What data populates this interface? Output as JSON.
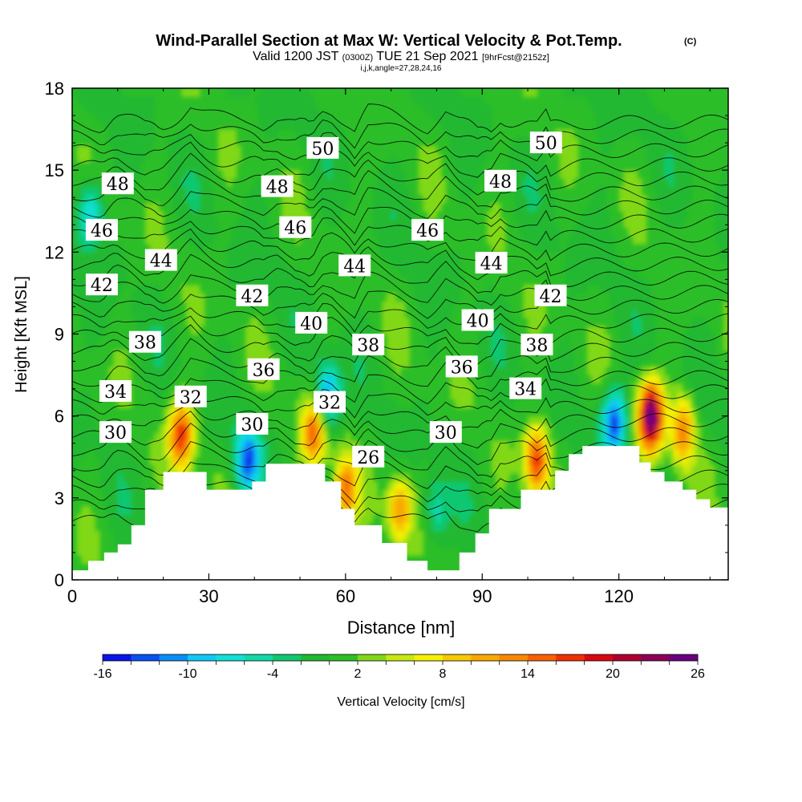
{
  "chart_data": {
    "type": "heatmap",
    "title": "Wind-Parallel Section at Max W: Vertical Velocity & Pot.Temp.",
    "title_mark": "(C)",
    "subtitle": {
      "valid": "Valid 1200 JST",
      "utc": "(0300Z)",
      "date": "TUE 21 Sep 2021",
      "forecast": "[9hrFcst@2152z]"
    },
    "info_line": "i,j,k,angle=27,28,24,16",
    "xlabel": "Distance [nm]",
    "ylabel": "Height [Kft MSL]",
    "xlim": [
      0,
      144
    ],
    "ylim": [
      0,
      18
    ],
    "xticks": [
      "0",
      "30",
      "60",
      "90",
      "120"
    ],
    "yticks": [
      "0",
      "3",
      "6",
      "9",
      "12",
      "15",
      "18"
    ],
    "colorbar": {
      "label": "Vertical Velocity [cm/s]",
      "tick_labels": [
        "-16",
        "-10",
        "-4",
        "2",
        "8",
        "14",
        "20",
        "26"
      ],
      "levels": [
        -16,
        -14,
        -12,
        -10,
        -8,
        -6,
        -4,
        -2,
        0,
        2,
        4,
        6,
        8,
        10,
        12,
        14,
        16,
        18,
        20,
        22,
        24,
        26
      ],
      "colors": [
        "#0a14e8",
        "#0a50f0",
        "#0a8ef5",
        "#10c8f5",
        "#10e0d8",
        "#10d8a8",
        "#10c870",
        "#20b830",
        "#2cc024",
        "#80d818",
        "#c8e810",
        "#f5f000",
        "#f8c800",
        "#f8a800",
        "#f88800",
        "#f86000",
        "#f03000",
        "#d80810",
        "#b00030",
        "#8c0058",
        "#6a0080"
      ]
    },
    "contours": {
      "variable": "Potential Temperature",
      "labels": [
        {
          "value": "50",
          "x": 55,
          "y": 15.8
        },
        {
          "value": "50",
          "x": 104,
          "y": 16.0
        },
        {
          "value": "48",
          "x": 10,
          "y": 14.5
        },
        {
          "value": "48",
          "x": 45,
          "y": 14.4
        },
        {
          "value": "48",
          "x": 94,
          "y": 14.6
        },
        {
          "value": "46",
          "x": 6.5,
          "y": 12.8
        },
        {
          "value": "46",
          "x": 49,
          "y": 12.9
        },
        {
          "value": "46",
          "x": 78,
          "y": 12.8
        },
        {
          "value": "44",
          "x": 19.5,
          "y": 11.7
        },
        {
          "value": "44",
          "x": 62,
          "y": 11.5
        },
        {
          "value": "44",
          "x": 92,
          "y": 11.6
        },
        {
          "value": "42",
          "x": 6.5,
          "y": 10.8
        },
        {
          "value": "42",
          "x": 39.5,
          "y": 10.4
        },
        {
          "value": "42",
          "x": 105,
          "y": 10.4
        },
        {
          "value": "40",
          "x": 52.5,
          "y": 9.4
        },
        {
          "value": "40",
          "x": 89,
          "y": 9.5
        },
        {
          "value": "38",
          "x": 16,
          "y": 8.7
        },
        {
          "value": "38",
          "x": 65,
          "y": 8.6
        },
        {
          "value": "38",
          "x": 102,
          "y": 8.6
        },
        {
          "value": "36",
          "x": 42,
          "y": 7.7
        },
        {
          "value": "36",
          "x": 85.5,
          "y": 7.8
        },
        {
          "value": "34",
          "x": 9.5,
          "y": 6.9
        },
        {
          "value": "34",
          "x": 99.5,
          "y": 7.0
        },
        {
          "value": "32",
          "x": 26,
          "y": 6.7
        },
        {
          "value": "32",
          "x": 56.5,
          "y": 6.5
        },
        {
          "value": "30",
          "x": 9.5,
          "y": 5.4
        },
        {
          "value": "30",
          "x": 39.5,
          "y": 5.7
        },
        {
          "value": "30",
          "x": 82,
          "y": 5.4
        },
        {
          "value": "26",
          "x": 65,
          "y": 4.5
        }
      ]
    },
    "terrain_kft": [
      [
        0,
        0.35
      ],
      [
        3.5,
        0.35
      ],
      [
        3.5,
        0.7
      ],
      [
        7,
        0.7
      ],
      [
        7,
        1.0
      ],
      [
        10,
        1.0
      ],
      [
        10,
        1.3
      ],
      [
        13,
        1.3
      ],
      [
        13,
        2.0
      ],
      [
        16,
        2.0
      ],
      [
        16,
        3.3
      ],
      [
        20,
        3.3
      ],
      [
        20,
        3.95
      ],
      [
        29.5,
        3.95
      ],
      [
        29.5,
        3.3
      ],
      [
        39.5,
        3.3
      ],
      [
        39.5,
        3.6
      ],
      [
        42.5,
        3.6
      ],
      [
        42.5,
        4.25
      ],
      [
        55.5,
        4.25
      ],
      [
        55.5,
        3.6
      ],
      [
        59,
        3.6
      ],
      [
        59,
        2.6
      ],
      [
        62,
        2.6
      ],
      [
        62,
        2.0
      ],
      [
        68,
        2.0
      ],
      [
        68,
        1.35
      ],
      [
        73.5,
        1.35
      ],
      [
        73.5,
        0.7
      ],
      [
        78,
        0.7
      ],
      [
        78,
        0.35
      ],
      [
        85,
        0.35
      ],
      [
        85,
        1.0
      ],
      [
        88.5,
        1.0
      ],
      [
        88.5,
        1.7
      ],
      [
        91.5,
        1.7
      ],
      [
        91.5,
        2.6
      ],
      [
        98.5,
        2.6
      ],
      [
        98.5,
        3.3
      ],
      [
        106,
        3.3
      ],
      [
        106,
        4.0
      ],
      [
        109,
        4.0
      ],
      [
        109,
        4.6
      ],
      [
        112,
        4.6
      ],
      [
        112,
        4.9
      ],
      [
        124.5,
        4.9
      ],
      [
        124.5,
        4.3
      ],
      [
        127,
        4.3
      ],
      [
        127,
        3.95
      ],
      [
        130,
        3.95
      ],
      [
        130,
        3.6
      ],
      [
        134,
        3.6
      ],
      [
        134,
        3.3
      ],
      [
        137,
        3.3
      ],
      [
        137,
        2.95
      ],
      [
        140,
        2.95
      ],
      [
        140,
        2.65
      ],
      [
        144,
        2.65
      ]
    ],
    "features": [
      {
        "kind": "updraft",
        "x": 24,
        "y": 5.3,
        "peak_cm_s": 17
      },
      {
        "kind": "updraft",
        "x": 53,
        "y": 5.4,
        "peak_cm_s": 14
      },
      {
        "kind": "updraft",
        "x": 60,
        "y": 3.3,
        "peak_cm_s": 13
      },
      {
        "kind": "updraft",
        "x": 72,
        "y": 2.6,
        "peak_cm_s": 12
      },
      {
        "kind": "updraft",
        "x": 102,
        "y": 4.4,
        "peak_cm_s": 17
      },
      {
        "kind": "updraft",
        "x": 127,
        "y": 6.0,
        "peak_cm_s": 26
      },
      {
        "kind": "updraft",
        "x": 134,
        "y": 5.5,
        "peak_cm_s": 12
      },
      {
        "kind": "downdraft",
        "x": 38.5,
        "y": 4.4,
        "peak_cm_s": -13
      },
      {
        "kind": "downdraft",
        "x": 56,
        "y": 6.8,
        "peak_cm_s": -12
      },
      {
        "kind": "downdraft",
        "x": 119,
        "y": 5.8,
        "peak_cm_s": -14
      },
      {
        "kind": "downdraft",
        "x": 4,
        "y": 13.5,
        "peak_cm_s": -10
      },
      {
        "kind": "downdraft",
        "x": 80,
        "y": 2.5,
        "peak_cm_s": -6
      }
    ]
  }
}
